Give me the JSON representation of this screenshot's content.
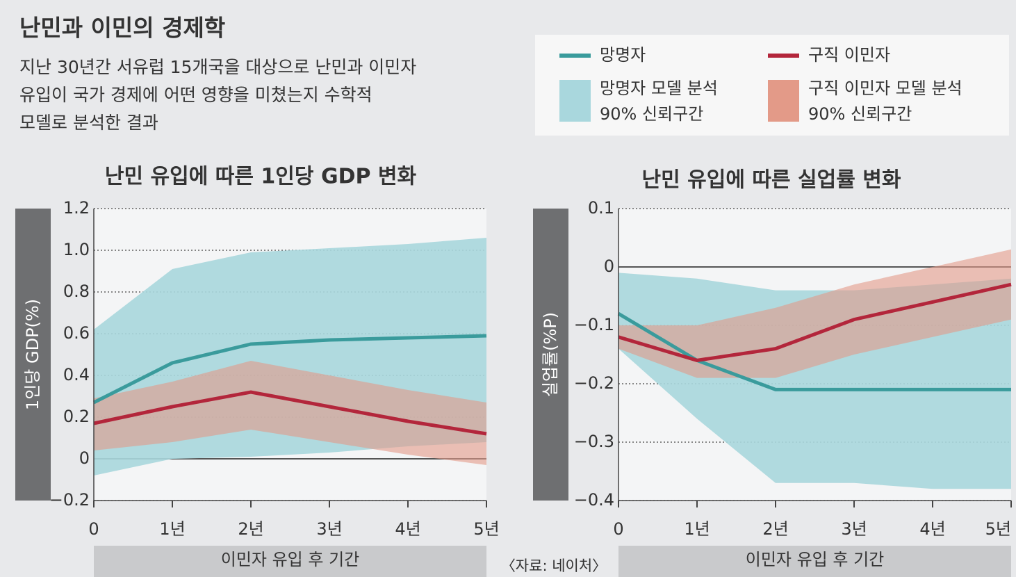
{
  "title": "난민과 이민의 경제학",
  "subtitle": [
    "지난 30년간 서유럽 15개국을 대상으로 난민과 이민자",
    "유입이 국가 경제에 어떤 영향을 미쳤는지 수학적",
    "모델로 분석한 결과"
  ],
  "legend": [
    {
      "name": "망명자",
      "color": "#3a9b9c",
      "band_label": [
        "망명자 모델 분석",
        "90% 신뢰구간"
      ],
      "band_color": "#a9d7dd"
    },
    {
      "name": "구직 이민자",
      "color": "#b3263b",
      "band_label": [
        "구직 이민자 모델 분석",
        "90% 신뢰구간"
      ],
      "band_color": "#e39a88"
    }
  ],
  "source": "〈자료: 네이처〉",
  "chart_data": [
    {
      "type": "line",
      "title": "난민 유입에 따른 1인당 GDP 변화",
      "y_label": "1인당 GDP(%)",
      "x_label": "이민자 유입 후 기간",
      "categories": [
        "0",
        "1년",
        "2년",
        "3년",
        "4년",
        "5년"
      ],
      "ylim": [
        -0.2,
        1.2
      ],
      "yticks": [
        {
          "value": -0.2,
          "label": "−0.2"
        },
        0,
        0.2,
        0.4,
        0.6,
        0.8,
        {
          "value": 1,
          "label": "1.0"
        },
        1.2
      ],
      "grid": true,
      "series": [
        {
          "values": [
            0.27,
            0.46,
            0.55,
            0.57,
            0.58,
            0.59
          ],
          "upper": [
            0.62,
            0.91,
            0.99,
            1.01,
            1.03,
            1.06
          ],
          "lower": [
            -0.08,
            0.0,
            0.01,
            0.03,
            0.06,
            0.08
          ]
        },
        {
          "values": [
            0.17,
            0.25,
            0.32,
            0.25,
            0.18,
            0.12
          ],
          "upper": [
            0.29,
            0.37,
            0.47,
            0.4,
            0.33,
            0.27
          ],
          "lower": [
            0.04,
            0.08,
            0.14,
            0.08,
            0.02,
            -0.03
          ]
        }
      ]
    },
    {
      "type": "line",
      "title": "난민 유입에 따른 실업률 변화",
      "y_label": "실업률(%P)",
      "x_label": "이민자 유입 후 기간",
      "categories": [
        "0",
        "1년",
        "2년",
        "3년",
        "4년",
        "5년"
      ],
      "ylim": [
        -0.4,
        0.1
      ],
      "yticks": [
        {
          "value": -0.4,
          "label": "−0.4"
        },
        {
          "value": -0.3,
          "label": "−0.3"
        },
        {
          "value": -0.2,
          "label": "−0.2"
        },
        {
          "value": -0.1,
          "label": "−0.1"
        },
        0,
        0.1
      ],
      "grid": true,
      "series": [
        {
          "values": [
            -0.08,
            -0.16,
            -0.21,
            -0.21,
            -0.21,
            -0.21
          ],
          "upper": [
            -0.01,
            -0.02,
            -0.04,
            -0.04,
            -0.03,
            -0.02
          ],
          "lower": [
            -0.14,
            -0.26,
            -0.37,
            -0.37,
            -0.38,
            -0.38
          ]
        },
        {
          "values": [
            -0.12,
            -0.16,
            -0.14,
            -0.09,
            -0.06,
            -0.03
          ],
          "upper": [
            -0.1,
            -0.1,
            -0.07,
            -0.03,
            0.0,
            0.03
          ],
          "lower": [
            -0.14,
            -0.19,
            -0.19,
            -0.15,
            -0.12,
            -0.09
          ]
        }
      ]
    }
  ]
}
